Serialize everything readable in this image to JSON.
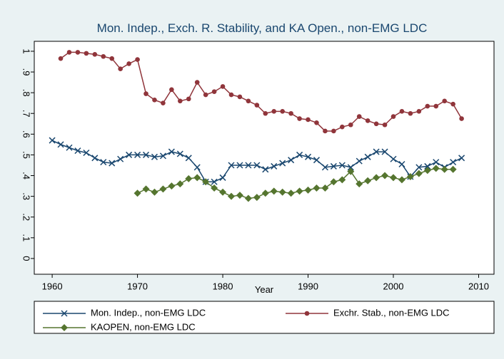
{
  "chart_data": {
    "type": "line",
    "title": "Mon. Indep., Exch. R. Stability, and KA Open., non-EMG LDC",
    "x_label": "Year",
    "x": [
      1960,
      1961,
      1962,
      1963,
      1964,
      1965,
      1966,
      1967,
      1968,
      1969,
      1970,
      1971,
      1972,
      1973,
      1974,
      1975,
      1976,
      1977,
      1978,
      1979,
      1980,
      1981,
      1982,
      1983,
      1984,
      1985,
      1986,
      1987,
      1988,
      1989,
      1990,
      1991,
      1992,
      1993,
      1994,
      1995,
      1996,
      1997,
      1998,
      1999,
      2000,
      2001,
      2002,
      2003,
      2004,
      2005,
      2006,
      2007,
      2008
    ],
    "series": [
      {
        "name": "Mon. Indep., non-EMG LDC",
        "color": "#1a476f",
        "marker": "x",
        "values": [
          0.57,
          0.55,
          0.535,
          0.52,
          0.51,
          0.485,
          0.465,
          0.46,
          0.48,
          0.5,
          0.5,
          0.5,
          0.49,
          0.495,
          0.515,
          0.505,
          0.485,
          0.44,
          0.37,
          0.37,
          0.39,
          0.45,
          0.45,
          0.45,
          0.45,
          0.43,
          0.445,
          0.46,
          0.475,
          0.5,
          0.49,
          0.475,
          0.44,
          0.445,
          0.45,
          0.44,
          0.47,
          0.49,
          0.515,
          0.515,
          0.48,
          0.455,
          0.395,
          0.44,
          0.445,
          0.465,
          0.44,
          0.465,
          0.485
        ]
      },
      {
        "name": "Exchr. Stab., non-EMG LDC",
        "color": "#90353b",
        "marker": "circle",
        "values": [
          null,
          0.965,
          0.995,
          0.995,
          0.99,
          0.985,
          0.975,
          0.965,
          0.915,
          0.94,
          0.96,
          0.795,
          0.765,
          0.75,
          0.815,
          0.76,
          0.77,
          0.85,
          0.79,
          0.805,
          0.83,
          0.79,
          0.78,
          0.76,
          0.74,
          0.7,
          0.71,
          0.71,
          0.7,
          0.675,
          0.67,
          0.655,
          0.615,
          0.615,
          0.635,
          0.645,
          0.685,
          0.665,
          0.65,
          0.645,
          0.685,
          0.71,
          0.7,
          0.71,
          0.735,
          0.735,
          0.76,
          0.745,
          0.675
        ]
      },
      {
        "name": "KAOPEN, non-EMG LDC",
        "color": "#55752f",
        "marker": "diamond",
        "values": [
          null,
          null,
          null,
          null,
          null,
          null,
          null,
          null,
          null,
          null,
          0.315,
          0.335,
          0.32,
          0.335,
          0.35,
          0.36,
          0.385,
          0.39,
          0.37,
          0.34,
          0.32,
          0.3,
          0.305,
          0.29,
          0.295,
          0.315,
          0.325,
          0.32,
          0.315,
          0.325,
          0.33,
          0.34,
          0.34,
          0.37,
          0.38,
          0.42,
          0.36,
          0.375,
          0.39,
          0.4,
          0.39,
          0.38,
          0.395,
          0.41,
          0.425,
          0.435,
          0.43,
          0.43,
          null
        ]
      }
    ],
    "xlim": [
      1957.9,
      2011.8
    ],
    "xticks": [
      1960,
      1970,
      1980,
      1990,
      2000,
      2010
    ],
    "ylim": [
      -0.076,
      1.048
    ],
    "yticks": [
      0,
      {
        "value": 0.1,
        "label": ".1"
      },
      {
        "value": 0.2,
        "label": ".2"
      },
      {
        "value": 0.3,
        "label": ".3"
      },
      {
        "value": 0.4,
        "label": ".4"
      },
      {
        "value": 0.5,
        "label": ".5"
      },
      {
        "value": 0.6,
        "label": ".6"
      },
      {
        "value": 0.7,
        "label": ".7"
      },
      {
        "value": 0.8,
        "label": ".8"
      },
      {
        "value": 0.9,
        "label": ".9"
      },
      1
    ],
    "grid": false
  }
}
